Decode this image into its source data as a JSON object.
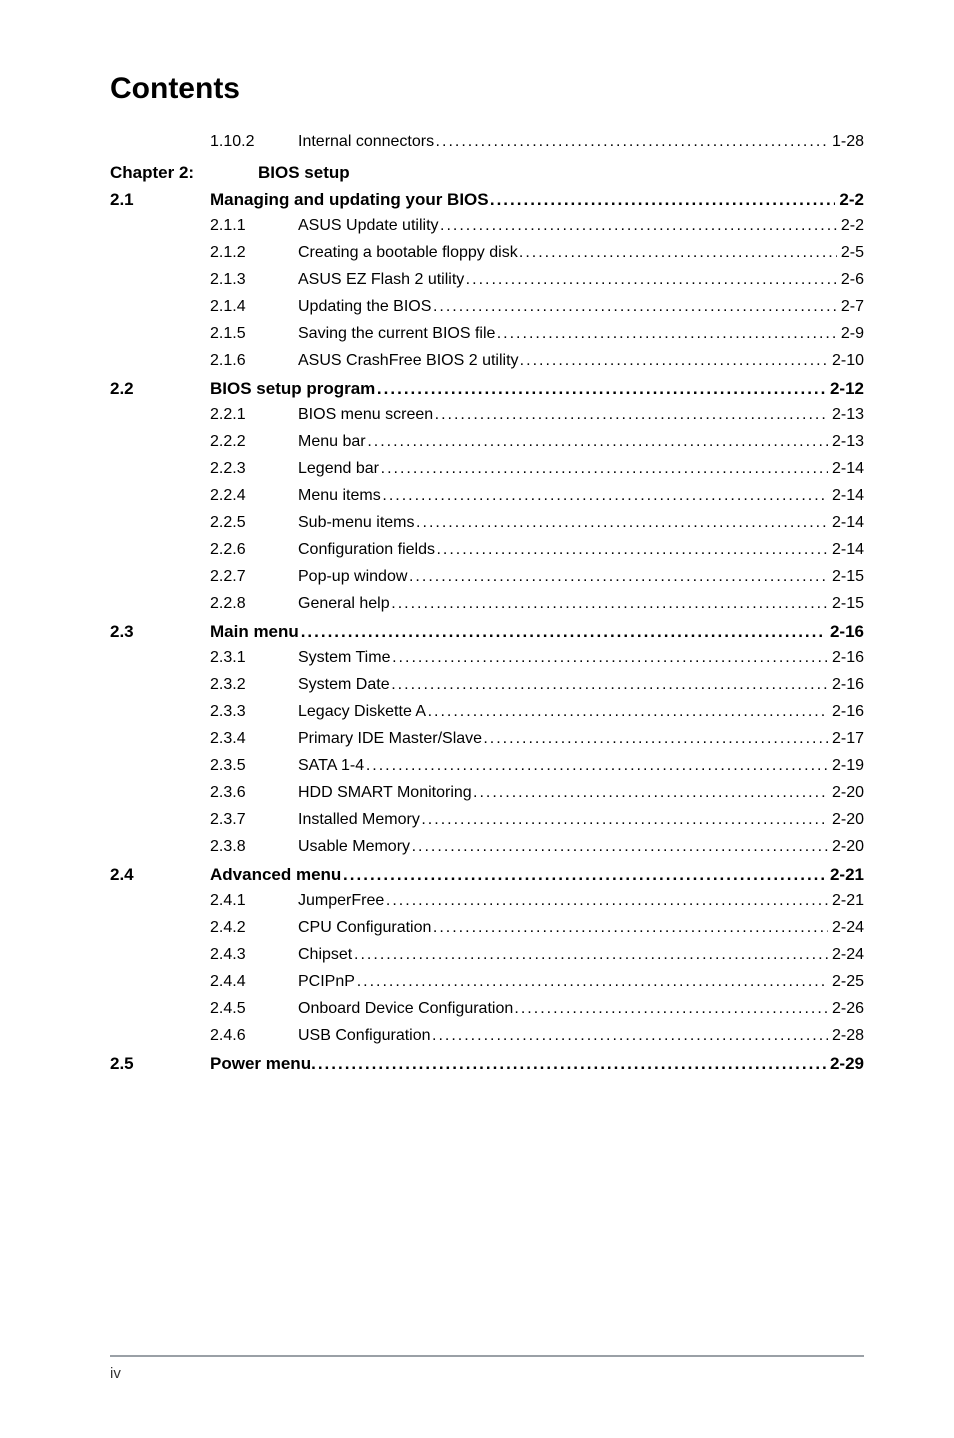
{
  "title": "Contents",
  "footer_page": "iv",
  "colors": {
    "text": "#000000",
    "background": "#ffffff",
    "rule": "#9aa0a6"
  },
  "typography": {
    "title_fontsize": 30,
    "body_fontsize": 16,
    "section_fontsize": 17,
    "font_family": "Arial"
  },
  "pre_chapter": [
    {
      "num": "1.10.2",
      "label": "Internal connectors",
      "page": "1-28"
    }
  ],
  "chapter": {
    "num": "Chapter 2:",
    "title": "BIOS setup"
  },
  "sections": [
    {
      "num": "2.1",
      "label": "Managing and updating your BIOS",
      "page": "2-2",
      "items": [
        {
          "num": "2.1.1",
          "label": "ASUS Update utility",
          "page": "2-2"
        },
        {
          "num": "2.1.2",
          "label": "Creating a bootable floppy disk",
          "page": "2-5"
        },
        {
          "num": "2.1.3",
          "label": "ASUS EZ Flash 2 utility",
          "page": "2-6"
        },
        {
          "num": "2.1.4",
          "label": "Updating the BIOS",
          "page": "2-7"
        },
        {
          "num": "2.1.5",
          "label": "Saving the current BIOS file",
          "page": "2-9"
        },
        {
          "num": "2.1.6",
          "label": "ASUS CrashFree BIOS 2 utility",
          "page": "2-10"
        }
      ]
    },
    {
      "num": "2.2",
      "label": "BIOS setup program",
      "page": "2-12",
      "items": [
        {
          "num": "2.2.1",
          "label": "BIOS menu screen",
          "page": "2-13"
        },
        {
          "num": "2.2.2",
          "label": "Menu bar",
          "page": "2-13"
        },
        {
          "num": "2.2.3",
          "label": "Legend bar",
          "page": "2-14"
        },
        {
          "num": "2.2.4",
          "label": "Menu items",
          "page": "2-14"
        },
        {
          "num": "2.2.5",
          "label": "Sub-menu items",
          "page": "2-14"
        },
        {
          "num": "2.2.6",
          "label": "Configuration fields",
          "page": "2-14"
        },
        {
          "num": "2.2.7",
          "label": "Pop-up window",
          "page": "2-15"
        },
        {
          "num": "2.2.8",
          "label": "General help",
          "page": "2-15"
        }
      ]
    },
    {
      "num": "2.3",
      "label": "Main menu",
      "page": "2-16",
      "items": [
        {
          "num": "2.3.1",
          "label": "System Time",
          "page": "2-16"
        },
        {
          "num": "2.3.2",
          "label": "System Date ",
          "page": "2-16"
        },
        {
          "num": "2.3.3",
          "label": "Legacy Diskette A ",
          "page": "2-16"
        },
        {
          "num": "2.3.4",
          "label": "Primary IDE Master/Slave",
          "page": "2-17"
        },
        {
          "num": "2.3.5",
          "label": "SATA 1-4",
          "page": "2-19"
        },
        {
          "num": "2.3.6",
          "label": "HDD SMART Monitoring ",
          "page": "2-20"
        },
        {
          "num": "2.3.7",
          "label": "Installed Memory ",
          "page": "2-20"
        },
        {
          "num": "2.3.8",
          "label": "Usable Memory ",
          "page": "2-20"
        }
      ]
    },
    {
      "num": "2.4",
      "label": "Advanced menu",
      "page": "2-21",
      "items": [
        {
          "num": "2.4.1",
          "label": "JumperFree",
          "page": "2-21"
        },
        {
          "num": "2.4.2",
          "label": "CPU Configuration",
          "page": "2-24"
        },
        {
          "num": "2.4.3",
          "label": "Chipset",
          "page": "2-24"
        },
        {
          "num": "2.4.4",
          "label": "PCIPnP",
          "page": "2-25"
        },
        {
          "num": "2.4.5",
          "label": "Onboard Device Configuration",
          "page": "2-26"
        },
        {
          "num": "2.4.6",
          "label": "USB Configuration",
          "page": "2-28"
        }
      ]
    },
    {
      "num": "2.5",
      "label": "Power menu",
      "page": "2-29",
      "items": []
    }
  ]
}
